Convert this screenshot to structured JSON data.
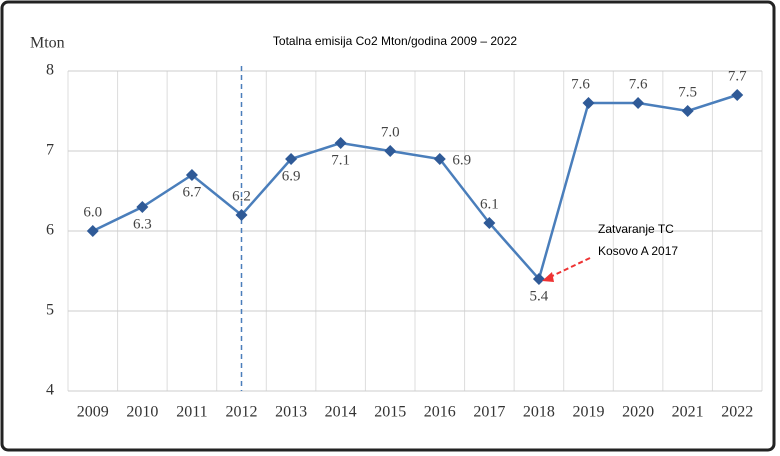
{
  "chart_data": {
    "type": "line",
    "title": "Totalna emisija Co2 Mton/godina 2009 – 2022",
    "y_label": "Mton",
    "categories": [
      "2009",
      "2010",
      "2011",
      "2012",
      "2013",
      "2014",
      "2015",
      "2016",
      "2017",
      "2018",
      "2019",
      "2020",
      "2021",
      "2022"
    ],
    "series": [
      {
        "name": "Totalna emisija Co2",
        "color": "#4a7ebb",
        "values": [
          6.0,
          6.3,
          6.7,
          6.2,
          6.9,
          7.1,
          7.0,
          6.9,
          6.1,
          5.4,
          7.6,
          7.6,
          7.5,
          7.7
        ],
        "value_labels": [
          "6.0",
          "6.3",
          "6.7",
          "6.2",
          "6.9",
          "7.1",
          "7.0",
          "6.9",
          "6.1",
          "5.4",
          "7.6",
          "7.6",
          "7.5",
          "7.7"
        ]
      }
    ],
    "ylim": [
      4,
      8
    ],
    "yticks": [
      4,
      5,
      6,
      7,
      8
    ],
    "grid": true,
    "annotation": "Zatvaranje TC Kosovo A 2017",
    "annotation_lines": [
      "Zatvaranje TC",
      "Kosovo A 2017"
    ]
  }
}
